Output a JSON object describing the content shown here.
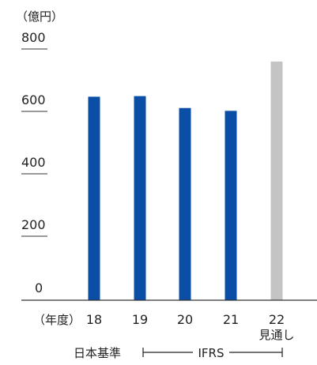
{
  "chart_data": {
    "type": "bar",
    "unit_label": "（億円）",
    "categories": [
      "18",
      "19",
      "20",
      "21",
      "22"
    ],
    "values": [
      648,
      650,
      612,
      603,
      760
    ],
    "forecast_note": "見通し",
    "ylim": [
      0,
      800
    ],
    "yticks": [
      "800",
      "600",
      "400",
      "200",
      "0"
    ],
    "x_axis_label": "（年度）",
    "bar_colors": [
      "#0a4ea6",
      "#0a4ea6",
      "#0a4ea6",
      "#0a4ea6",
      "#c4c4c4"
    ],
    "standards": {
      "jgaap_label": "日本基準",
      "ifrs_label": "IFRS"
    }
  }
}
